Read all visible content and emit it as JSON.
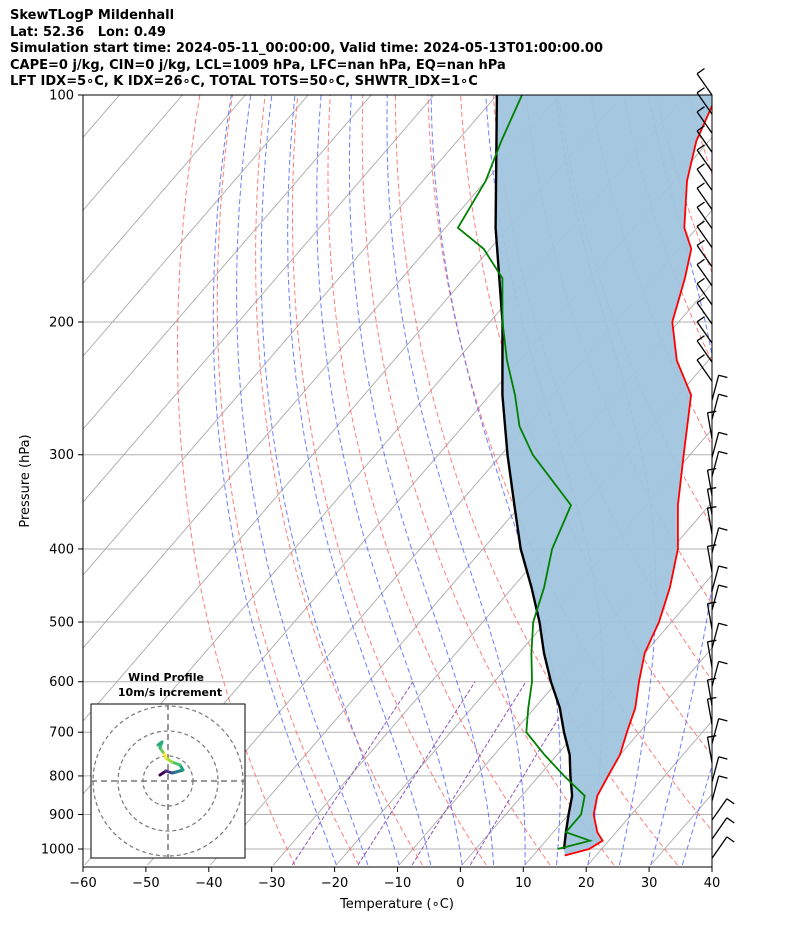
{
  "title": {
    "line1": "SkewTLogP Mildenhall",
    "line2": "Lat: 52.36   Lon: 0.49",
    "line3": "Simulation start time: 2024-05-11_00:00:00, Valid time: 2024-05-13T01:00:00.00",
    "line4": "CAPE=0 j/kg, CIN=0 j/kg, LCL=1009 hPa, LFC=nan hPa, EQ=nan hPa",
    "line5": "LFT IDX=5∘C, K IDX=26∘C, TOTAL TOTS=50∘C, SHWTR_IDX=1∘C"
  },
  "chart_data": {
    "type": "line",
    "xlabel": "Temperature (∘C)",
    "ylabel": "Pressure (hPa)",
    "xlim": [
      -60,
      40
    ],
    "ylim": [
      1050,
      100
    ],
    "x_ticks": [
      -60,
      -50,
      -40,
      -30,
      -20,
      -10,
      0,
      10,
      20,
      30,
      40
    ],
    "y_ticks": [
      100,
      200,
      300,
      400,
      500,
      600,
      700,
      800,
      900,
      1000
    ],
    "y_scale": "log",
    "skew": "skewed temperature axis",
    "grid": true,
    "colors": {
      "temperature": "#ff0000",
      "dewpoint": "#008000",
      "parcel": "#000000",
      "fill": "#a0c4de",
      "dry_adiabats": "#ff6666",
      "moist_adiabats": "#5566ff",
      "mixing_ratio": "#8855bb",
      "isotherms": "#aaaaaa",
      "wind_barbs": "#000000"
    },
    "series": [
      {
        "name": "Temperature",
        "points": [
          [
            15,
            1020
          ],
          [
            18,
            1000
          ],
          [
            19,
            975
          ],
          [
            17,
            950
          ],
          [
            14,
            900
          ],
          [
            12,
            850
          ],
          [
            11,
            800
          ],
          [
            10,
            750
          ],
          [
            8,
            700
          ],
          [
            6,
            650
          ],
          [
            3,
            600
          ],
          [
            0,
            550
          ],
          [
            -2,
            500
          ],
          [
            -5,
            450
          ],
          [
            -9,
            400
          ],
          [
            -15,
            350
          ],
          [
            -21,
            300
          ],
          [
            -28,
            250
          ],
          [
            -35,
            225
          ],
          [
            -41,
            200
          ],
          [
            -45,
            175
          ],
          [
            -48,
            160
          ],
          [
            -52,
            150
          ],
          [
            -58,
            130
          ],
          [
            -62,
            115
          ],
          [
            -65,
            100
          ]
        ]
      },
      {
        "name": "Dewpoint",
        "points": [
          [
            13,
            1000
          ],
          [
            17,
            975
          ],
          [
            12,
            950
          ],
          [
            12,
            900
          ],
          [
            10,
            850
          ],
          [
            4,
            800
          ],
          [
            -2,
            750
          ],
          [
            -8,
            700
          ],
          [
            -11,
            650
          ],
          [
            -14,
            600
          ],
          [
            -18,
            550
          ],
          [
            -22,
            500
          ],
          [
            -25,
            450
          ],
          [
            -29,
            400
          ],
          [
            -32,
            350
          ],
          [
            -45,
            300
          ],
          [
            -51,
            275
          ],
          [
            -56,
            250
          ],
          [
            -62,
            225
          ],
          [
            -68,
            200
          ],
          [
            -74,
            175
          ],
          [
            -81,
            160
          ],
          [
            -88,
            150
          ],
          [
            -90,
            130
          ],
          [
            -93,
            115
          ],
          [
            -96,
            100
          ]
        ]
      },
      {
        "name": "Parcel",
        "points": [
          [
            14,
            1000
          ],
          [
            12,
            950
          ],
          [
            10,
            900
          ],
          [
            8,
            850
          ],
          [
            5,
            800
          ],
          [
            2,
            750
          ],
          [
            -2,
            700
          ],
          [
            -6,
            650
          ],
          [
            -11,
            600
          ],
          [
            -16,
            550
          ],
          [
            -21,
            500
          ],
          [
            -27,
            450
          ],
          [
            -34,
            400
          ],
          [
            -41,
            350
          ],
          [
            -49,
            300
          ],
          [
            -58,
            250
          ],
          [
            -68,
            200
          ],
          [
            -82,
            150
          ],
          [
            -100,
            100
          ]
        ]
      }
    ],
    "wind_profile": {
      "title": "Wind Profile",
      "subtitle": "10m/s increment"
    }
  }
}
